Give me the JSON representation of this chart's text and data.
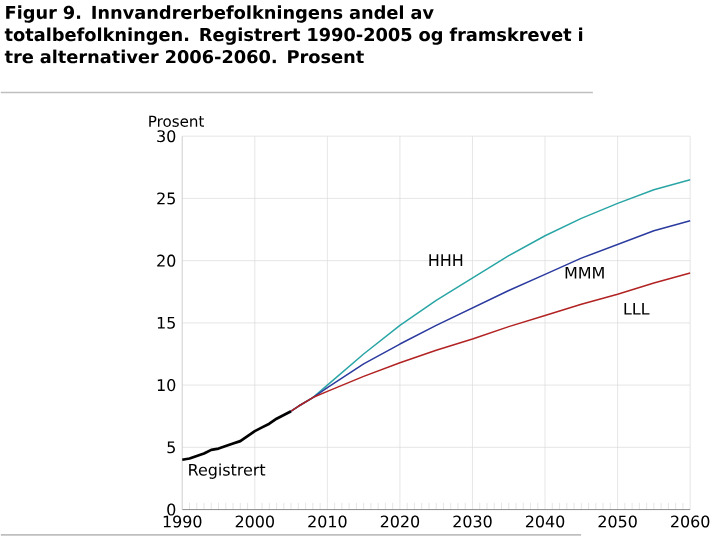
{
  "chart_data": {
    "type": "line",
    "title": "Figur 9. Innvandrerbefolkningens andel av totalbefolkningen. Registrert 1990-2005 og framskrevet i tre alternativer 2006-2060. Prosent",
    "ylabel": "Prosent",
    "xlim": [
      1990,
      2060
    ],
    "xticks": [
      1990,
      2000,
      2010,
      2020,
      2030,
      2040,
      2050,
      2060
    ],
    "ylim": [
      0,
      30
    ],
    "yticks": [
      0,
      5,
      10,
      15,
      20,
      25,
      30
    ],
    "grid": true,
    "marker": "none",
    "line_style": "solid",
    "series": [
      {
        "name": "Registrert",
        "color": "#000000",
        "x": [
          1990,
          1991,
          1992,
          1993,
          1994,
          1995,
          1996,
          1997,
          1998,
          1999,
          2000,
          2001,
          2002,
          2003,
          2004,
          2005
        ],
        "values": [
          4.0,
          4.1,
          4.3,
          4.5,
          4.8,
          4.9,
          5.1,
          5.3,
          5.5,
          5.9,
          6.3,
          6.6,
          6.9,
          7.3,
          7.6,
          7.9
        ]
      },
      {
        "name": "HHH",
        "color": "#2aa5a5",
        "x": [
          2005,
          2006,
          2008,
          2010,
          2015,
          2020,
          2025,
          2030,
          2035,
          2040,
          2045,
          2050,
          2055,
          2060
        ],
        "values": [
          7.9,
          8.3,
          9.0,
          10.0,
          12.5,
          14.8,
          16.8,
          18.6,
          20.4,
          22.0,
          23.4,
          24.6,
          25.7,
          26.5
        ]
      },
      {
        "name": "MMM",
        "color": "#2b3a9e",
        "x": [
          2005,
          2006,
          2008,
          2010,
          2015,
          2020,
          2025,
          2030,
          2035,
          2040,
          2045,
          2050,
          2055,
          2060
        ],
        "values": [
          7.9,
          8.3,
          9.0,
          9.8,
          11.7,
          13.3,
          14.8,
          16.2,
          17.6,
          18.9,
          20.2,
          21.3,
          22.4,
          23.2
        ]
      },
      {
        "name": "LLL",
        "color": "#b22222",
        "x": [
          2005,
          2006,
          2008,
          2010,
          2015,
          2020,
          2025,
          2030,
          2035,
          2040,
          2045,
          2050,
          2055,
          2060
        ],
        "values": [
          7.9,
          8.3,
          9.0,
          9.5,
          10.7,
          11.8,
          12.8,
          13.7,
          14.7,
          15.6,
          16.5,
          17.3,
          18.2,
          19.0
        ]
      }
    ]
  }
}
